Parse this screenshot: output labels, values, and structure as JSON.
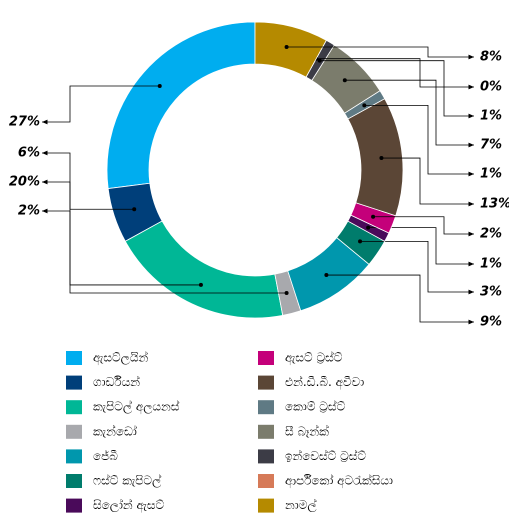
{
  "chart_data": {
    "type": "donut",
    "categories": [
      "ඇසට්ලයින්",
      "ගාර්ඩියන්",
      "කැපිටල් අලයනස්",
      "කැන්ඩෝ",
      "ජේබී",
      "ෆස්ට් කැපිටල්",
      "සිලෝන් ඇසට්",
      "ඇසට් ට්‍රස්ට්",
      "එන්.ඩී.බී. අවීවා",
      "කොම් ට්‍රස්ට්",
      "සී බෑන්ක්",
      "ඉන්වෙස්ට් ට්‍රස්ට්",
      "ආර්පිකෝ අටරැක්සියා",
      "නාමල්"
    ],
    "values": [
      27,
      6,
      20,
      2,
      9,
      3,
      1,
      2,
      13,
      1,
      7,
      1,
      0,
      8
    ],
    "value_labels": [
      "27%",
      "6%",
      "20%",
      "2%",
      "9%",
      "3%",
      "1%",
      "2%",
      "13%",
      "1%",
      "7%",
      "1%",
      "0%",
      "8%"
    ],
    "colors": [
      "#00adef",
      "#003f7a",
      "#00b796",
      "#a8a9ad",
      "#0097ad",
      "#007c6c",
      "#4a0a5a",
      "#c4007a",
      "#5b4636",
      "#5f7a84",
      "#7b7c6c",
      "#3c3c46",
      "#d67a58",
      "#b58a00"
    ],
    "legend": "bottom"
  }
}
